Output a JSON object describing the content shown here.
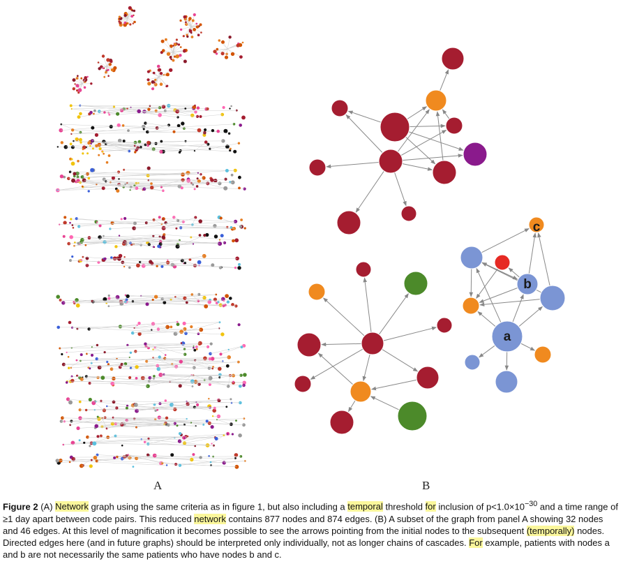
{
  "panels": {
    "a_label": "A",
    "b_label": "B"
  },
  "graph_b": {
    "node_labels": {
      "a": "a",
      "b": "b",
      "c": "c"
    },
    "colors": {
      "red": "#a51d30",
      "orange": "#f08a1f",
      "purple": "#8a1a8c",
      "green": "#4c8a2a",
      "blue": "#7b95d4",
      "brightred": "#e62a24",
      "edge": "#888888"
    }
  },
  "caption": {
    "figure_no": "Figure 2",
    "part1": " (A) ",
    "hl_network1": "Network",
    "part2": " graph using the same criteria as in figure 1, but also including a ",
    "hl_temporal": "temporal",
    "part3": " threshold ",
    "hl_for1": "for",
    "part4": " inclusion of p<1.0×10",
    "exponent": "−30",
    "part5": " and a time range of ≥1 day apart between code pairs. This reduced ",
    "hl_network2": "network",
    "part6": " contains 877 nodes and 874 edges. (B) A subset of the graph from panel A showing 32 nodes and 46 edges. At this level of magnification it becomes possible to see the arrows pointing from the initial nodes to the subsequent ",
    "hl_temporally": "(temporally)",
    "part7": " nodes. Directed edges here (and in future graphs) should be interpreted only individually, not as longer chains of cascades. ",
    "hl_for2": "For",
    "part8": " example, patients with nodes a and b are not necessarily the same patients who have nodes b and c."
  }
}
